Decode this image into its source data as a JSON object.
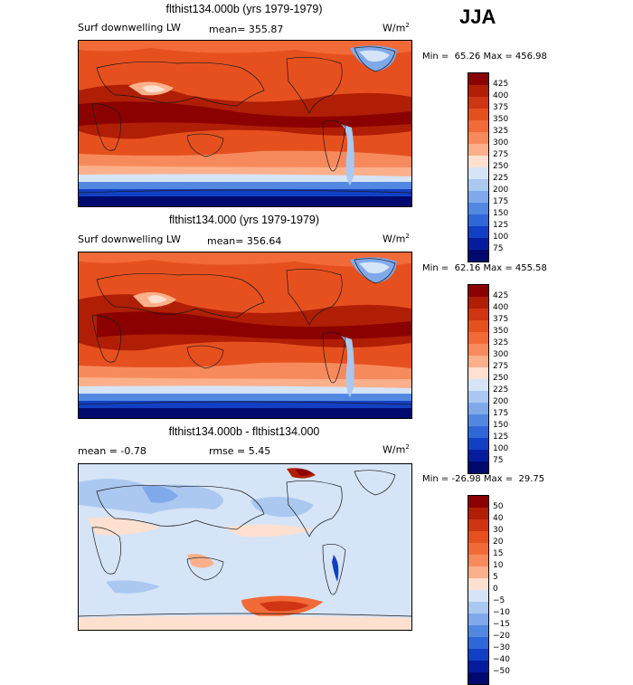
{
  "season": "JJA",
  "panels": [
    {
      "title": "flthist134.000b (yrs 1979-1979)",
      "field": "Surf downwelling LW",
      "stat": "mean= 355.87",
      "units_base": "W/m",
      "units_exp": "2",
      "minmax": "Min =  65.26 Max = 456.98",
      "ticks": [
        "425",
        "400",
        "375",
        "350",
        "325",
        "300",
        "275",
        "250",
        "225",
        "200",
        "175",
        "150",
        "125",
        "100",
        "75"
      ],
      "colors": [
        "#8b0000",
        "#b01e06",
        "#cf3512",
        "#e6501f",
        "#f26a38",
        "#f78a5c",
        "#fbb08b",
        "#fde0cf",
        "#d6e4f7",
        "#aac8f0",
        "#7fa9ea",
        "#5388e2",
        "#2f67d9",
        "#1240c4",
        "#061c9e",
        "#000a6e"
      ]
    },
    {
      "title": "flthist134.000 (yrs 1979-1979)",
      "field": "Surf downwelling LW",
      "stat": "mean= 356.64",
      "units_base": "W/m",
      "units_exp": "2",
      "minmax": "Min =  62.16 Max = 455.58",
      "ticks": [
        "425",
        "400",
        "375",
        "350",
        "325",
        "300",
        "275",
        "250",
        "225",
        "200",
        "175",
        "150",
        "125",
        "100",
        "75"
      ],
      "colors": [
        "#8b0000",
        "#b01e06",
        "#cf3512",
        "#e6501f",
        "#f26a38",
        "#f78a5c",
        "#fbb08b",
        "#fde0cf",
        "#d6e4f7",
        "#aac8f0",
        "#7fa9ea",
        "#5388e2",
        "#2f67d9",
        "#1240c4",
        "#061c9e",
        "#000a6e"
      ]
    },
    {
      "title": "flthist134.000b - flthist134.000",
      "field": "mean =   -0.78",
      "stat": "rmse =    5.45",
      "units_base": "W/m",
      "units_exp": "2",
      "minmax": "Min = -26.98 Max =  29.75",
      "ticks": [
        "50",
        "40",
        "30",
        "20",
        "15",
        "10",
        "5",
        "0",
        "−5",
        "−10",
        "−15",
        "−20",
        "−30",
        "−40",
        "−50"
      ],
      "colors": [
        "#8b0000",
        "#b01e06",
        "#cf3512",
        "#e6501f",
        "#f26a38",
        "#f78a5c",
        "#fbb08b",
        "#fde0cf",
        "#d6e4f7",
        "#aac8f0",
        "#7fa9ea",
        "#5388e2",
        "#2f67d9",
        "#1240c4",
        "#061c9e",
        "#000a6e"
      ]
    }
  ]
}
